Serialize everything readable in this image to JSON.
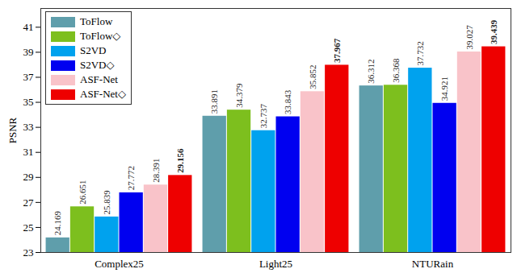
{
  "chart_data": {
    "type": "bar",
    "categories": [
      "Complex25",
      "Light25",
      "NTURain"
    ],
    "y_label": "PSNR",
    "ylim": [
      23,
      42.5
    ],
    "yticks": [
      23,
      25,
      27,
      29,
      31,
      33,
      35,
      37,
      39,
      41
    ],
    "data_labels": true,
    "legend": "upper left",
    "series": [
      {
        "name": "ToFlow",
        "color": "#5f9eab",
        "values": [
          24.169,
          33.891,
          36.312
        ]
      },
      {
        "name": "ToFlow◇",
        "color": "#7dbf1e",
        "values": [
          26.651,
          34.379,
          36.368
        ]
      },
      {
        "name": "S2VD",
        "color": "#00a2ee",
        "values": [
          25.839,
          32.737,
          37.732
        ]
      },
      {
        "name": "S2VD◇",
        "color": "#0000f0",
        "values": [
          27.772,
          33.843,
          34.921
        ]
      },
      {
        "name": "ASF-Net",
        "color": "#f9c3c9",
        "values": [
          28.391,
          35.852,
          39.027
        ]
      },
      {
        "name": "ASF-Net◇",
        "color": "#ee0000",
        "values": [
          29.156,
          37.967,
          39.439
        ]
      }
    ]
  }
}
